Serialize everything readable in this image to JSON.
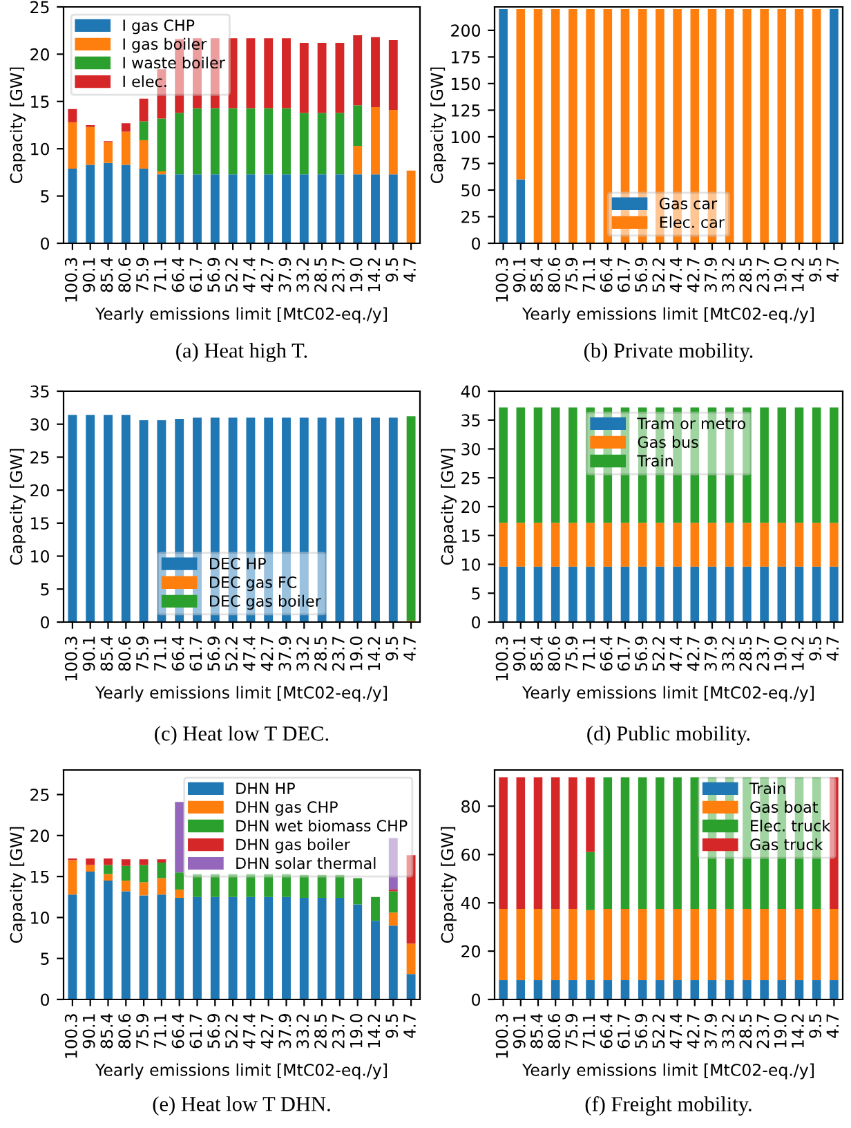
{
  "chart_data": [
    {
      "type": "bar",
      "stacked": true,
      "title": "(a) Heat high T.",
      "xlabel": "Yearly emissions limit [MtC02-eq./y]",
      "ylabel": "Capacity [GW]",
      "categories": [
        "100.3",
        "90.1",
        "85.4",
        "80.6",
        "75.9",
        "71.1",
        "66.4",
        "61.7",
        "56.9",
        "52.2",
        "47.4",
        "42.7",
        "37.9",
        "33.2",
        "28.5",
        "23.7",
        "19.0",
        "14.2",
        "9.5",
        "4.7"
      ],
      "ylim": [
        0,
        25
      ],
      "yticks": [
        0,
        5,
        10,
        15,
        20,
        25
      ],
      "legend": "top left",
      "grid": false,
      "series": [
        {
          "name": "I gas CHP",
          "color": "#1f77b4",
          "values": [
            7.9,
            8.3,
            8.5,
            8.3,
            7.9,
            7.3,
            7.3,
            7.3,
            7.3,
            7.3,
            7.3,
            7.3,
            7.3,
            7.3,
            7.3,
            7.3,
            7.3,
            7.3,
            7.3,
            0
          ]
        },
        {
          "name": "I gas boiler",
          "color": "#ff7f0e",
          "values": [
            4.9,
            4.0,
            2.2,
            3.5,
            3.0,
            0.3,
            0,
            0,
            0,
            0,
            0,
            0,
            0,
            0,
            0,
            0,
            3.0,
            7.1,
            6.8,
            7.7
          ]
        },
        {
          "name": "I waste boiler",
          "color": "#2ca02c",
          "values": [
            0,
            0,
            0,
            0,
            2.0,
            5.6,
            6.5,
            7.0,
            7.0,
            7.0,
            7.0,
            7.0,
            7.0,
            6.5,
            6.5,
            6.5,
            4.3,
            0,
            0,
            0
          ]
        },
        {
          "name": "I elec.",
          "color": "#d62728",
          "values": [
            1.4,
            0.2,
            0.1,
            0.9,
            2.4,
            5.2,
            7.8,
            7.4,
            7.4,
            7.4,
            7.4,
            7.4,
            7.4,
            7.4,
            7.4,
            7.4,
            7.4,
            7.4,
            7.4,
            0
          ]
        }
      ]
    },
    {
      "type": "bar",
      "stacked": true,
      "title": "(b) Private mobility.",
      "xlabel": "Yearly emissions limit [MtC02-eq./y]",
      "ylabel": "Capacity [GW]",
      "categories": [
        "100.3",
        "90.1",
        "85.4",
        "80.6",
        "75.9",
        "71.1",
        "66.4",
        "61.7",
        "56.9",
        "52.2",
        "47.4",
        "42.7",
        "37.9",
        "33.2",
        "28.5",
        "23.7",
        "19.0",
        "14.2",
        "9.5",
        "4.7"
      ],
      "ylim": [
        0,
        222
      ],
      "yticks": [
        0,
        25,
        50,
        75,
        100,
        125,
        150,
        175,
        200
      ],
      "legend": "bottom",
      "grid": false,
      "series": [
        {
          "name": "Gas car",
          "color": "#1f77b4",
          "values": [
            220,
            60,
            0,
            0,
            0,
            0,
            0,
            0,
            0,
            0,
            0,
            0,
            0,
            0,
            0,
            0,
            0,
            0,
            0,
            220
          ]
        },
        {
          "name": "Elec. car",
          "color": "#ff7f0e",
          "values": [
            0,
            160,
            220,
            220,
            220,
            220,
            220,
            220,
            220,
            220,
            220,
            220,
            220,
            220,
            220,
            220,
            220,
            220,
            220,
            0
          ]
        }
      ]
    },
    {
      "type": "bar",
      "stacked": true,
      "title": "(c) Heat low T DEC.",
      "xlabel": "Yearly emissions limit [MtC02-eq./y]",
      "ylabel": "Capacity [GW]",
      "categories": [
        "100.3",
        "90.1",
        "85.4",
        "80.6",
        "75.9",
        "71.1",
        "66.4",
        "61.7",
        "56.9",
        "52.2",
        "47.4",
        "42.7",
        "37.9",
        "33.2",
        "28.5",
        "23.7",
        "19.0",
        "14.2",
        "9.5",
        "4.7"
      ],
      "ylim": [
        0,
        35
      ],
      "yticks": [
        0,
        5,
        10,
        15,
        20,
        25,
        30,
        35
      ],
      "legend": "bottom",
      "grid": false,
      "series": [
        {
          "name": "DEC HP",
          "color": "#1f77b4",
          "values": [
            31.4,
            31.4,
            31.4,
            31.4,
            30.6,
            30.6,
            30.8,
            31.0,
            31.0,
            31.0,
            31.0,
            31.0,
            31.0,
            31.0,
            31.0,
            31.0,
            31.0,
            31.0,
            31.0,
            0
          ]
        },
        {
          "name": "DEC gas FC",
          "color": "#ff7f0e",
          "values": [
            0,
            0,
            0,
            0,
            0,
            0,
            0,
            0,
            0,
            0,
            0,
            0,
            0,
            0,
            0,
            0,
            0,
            0,
            0,
            0.2
          ]
        },
        {
          "name": "DEC gas boiler",
          "color": "#2ca02c",
          "values": [
            0,
            0,
            0,
            0,
            0,
            0,
            0,
            0,
            0,
            0,
            0,
            0,
            0,
            0,
            0,
            0,
            0,
            0,
            0,
            31.0
          ]
        }
      ]
    },
    {
      "type": "bar",
      "stacked": true,
      "title": "(d) Public mobility.",
      "xlabel": "Yearly emissions limit [MtC02-eq./y]",
      "ylabel": "Capacity [GW]",
      "categories": [
        "100.3",
        "90.1",
        "85.4",
        "80.6",
        "75.9",
        "71.1",
        "66.4",
        "61.7",
        "56.9",
        "52.2",
        "47.4",
        "42.7",
        "37.9",
        "33.2",
        "28.5",
        "23.7",
        "19.0",
        "14.2",
        "9.5",
        "4.7"
      ],
      "ylim": [
        0,
        40
      ],
      "yticks": [
        0,
        5,
        10,
        15,
        20,
        25,
        30,
        35,
        40
      ],
      "legend": "top",
      "grid": false,
      "series": [
        {
          "name": "Tram or metro",
          "color": "#1f77b4",
          "values": [
            9.6,
            9.6,
            9.6,
            9.6,
            9.6,
            9.6,
            9.6,
            9.6,
            9.6,
            9.6,
            9.6,
            9.6,
            9.6,
            9.6,
            9.6,
            9.6,
            9.6,
            9.6,
            9.6,
            9.6
          ]
        },
        {
          "name": "Gas bus",
          "color": "#ff7f0e",
          "values": [
            7.6,
            7.6,
            7.6,
            7.6,
            7.6,
            7.6,
            7.6,
            7.6,
            7.6,
            7.6,
            7.6,
            7.6,
            7.6,
            7.6,
            7.6,
            7.6,
            7.6,
            7.6,
            7.6,
            7.6
          ]
        },
        {
          "name": "Train",
          "color": "#2ca02c",
          "values": [
            20.0,
            20.0,
            20.0,
            20.0,
            20.0,
            20.0,
            20.0,
            20.0,
            20.0,
            20.0,
            20.0,
            20.0,
            20.0,
            20.0,
            20.0,
            20.0,
            20.0,
            20.0,
            20.0,
            20.0
          ]
        }
      ]
    },
    {
      "type": "bar",
      "stacked": true,
      "title": "(e) Heat low T DHN.",
      "xlabel": "Yearly emissions limit [MtC02-eq./y]",
      "ylabel": "Capacity [GW]",
      "categories": [
        "100.3",
        "90.1",
        "85.4",
        "80.6",
        "75.9",
        "71.1",
        "66.4",
        "61.7",
        "56.9",
        "52.2",
        "47.4",
        "42.7",
        "37.9",
        "33.2",
        "28.5",
        "23.7",
        "19.0",
        "14.2",
        "9.5",
        "4.7"
      ],
      "ylim": [
        0,
        28
      ],
      "yticks": [
        0,
        5,
        10,
        15,
        20,
        25
      ],
      "legend": "top right",
      "grid": false,
      "series": [
        {
          "name": "DHN HP",
          "color": "#1f77b4",
          "values": [
            12.8,
            15.6,
            14.5,
            13.2,
            12.7,
            12.8,
            12.4,
            12.5,
            12.5,
            12.5,
            12.5,
            12.5,
            12.5,
            12.4,
            12.4,
            12.4,
            11.6,
            9.6,
            9.0,
            3.1
          ]
        },
        {
          "name": "DHN gas CHP",
          "color": "#ff7f0e",
          "values": [
            4.2,
            0.8,
            0.8,
            1.3,
            1.6,
            2.0,
            1.0,
            0,
            0,
            0,
            0,
            0,
            0,
            0,
            0,
            0,
            0,
            0,
            1.6,
            3.7
          ]
        },
        {
          "name": "DHN wet biomass CHP",
          "color": "#2ca02c",
          "values": [
            0,
            0,
            1.1,
            1.8,
            2.1,
            1.9,
            2.1,
            2.8,
            2.8,
            2.8,
            2.8,
            2.8,
            2.8,
            2.8,
            2.8,
            2.8,
            3.2,
            2.9,
            2.6,
            0
          ]
        },
        {
          "name": "DHN gas boiler",
          "color": "#d62728",
          "values": [
            0.2,
            0.8,
            0.8,
            0.8,
            0.7,
            0.4,
            0,
            0,
            0,
            0,
            0,
            0,
            0,
            0,
            0,
            0,
            0,
            0,
            0.2,
            10.8
          ]
        },
        {
          "name": "DHN solar thermal",
          "color": "#9467bd",
          "values": [
            0,
            0,
            0,
            0,
            0,
            0,
            8.6,
            0,
            0,
            0,
            0,
            0,
            0,
            0,
            0,
            0,
            0,
            0,
            6.3,
            0
          ]
        }
      ]
    },
    {
      "type": "bar",
      "stacked": true,
      "title": "(f) Freight mobility.",
      "xlabel": "Yearly emissions limit [MtC02-eq./y]",
      "ylabel": "Capacity [GW]",
      "categories": [
        "100.3",
        "90.1",
        "85.4",
        "80.6",
        "75.9",
        "71.1",
        "66.4",
        "61.7",
        "56.9",
        "52.2",
        "47.4",
        "42.7",
        "37.9",
        "33.2",
        "28.5",
        "23.7",
        "19.0",
        "14.2",
        "9.5",
        "4.7"
      ],
      "ylim": [
        0,
        95
      ],
      "yticks": [
        0,
        20,
        40,
        60,
        80
      ],
      "legend": "top right",
      "grid": false,
      "series": [
        {
          "name": "Train",
          "color": "#1f77b4",
          "values": [
            8,
            8,
            8,
            8,
            8,
            8,
            8,
            8,
            8,
            8,
            8,
            8,
            8,
            8,
            8,
            8,
            8,
            8,
            8,
            8
          ]
        },
        {
          "name": "Gas boat",
          "color": "#ff7f0e",
          "values": [
            29.5,
            29.5,
            29.5,
            29.5,
            29.5,
            29,
            29.5,
            29.5,
            29.5,
            29.5,
            29.5,
            29.5,
            29.5,
            29.5,
            29.5,
            29.5,
            29.5,
            29.5,
            29.5,
            29.5
          ]
        },
        {
          "name": "Elec. truck",
          "color": "#2ca02c",
          "values": [
            0,
            0,
            0,
            0,
            0,
            24,
            54.5,
            54.5,
            54.5,
            54.5,
            54.5,
            54.5,
            54.5,
            54.5,
            54.5,
            54.5,
            54.5,
            54.5,
            54.5,
            0
          ]
        },
        {
          "name": "Gas truck",
          "color": "#d62728",
          "values": [
            54.5,
            54.5,
            54.5,
            54.5,
            54.5,
            31,
            0,
            0,
            0,
            0,
            0,
            0,
            0,
            0,
            0,
            0,
            0,
            0,
            0,
            54.5
          ]
        }
      ]
    }
  ]
}
